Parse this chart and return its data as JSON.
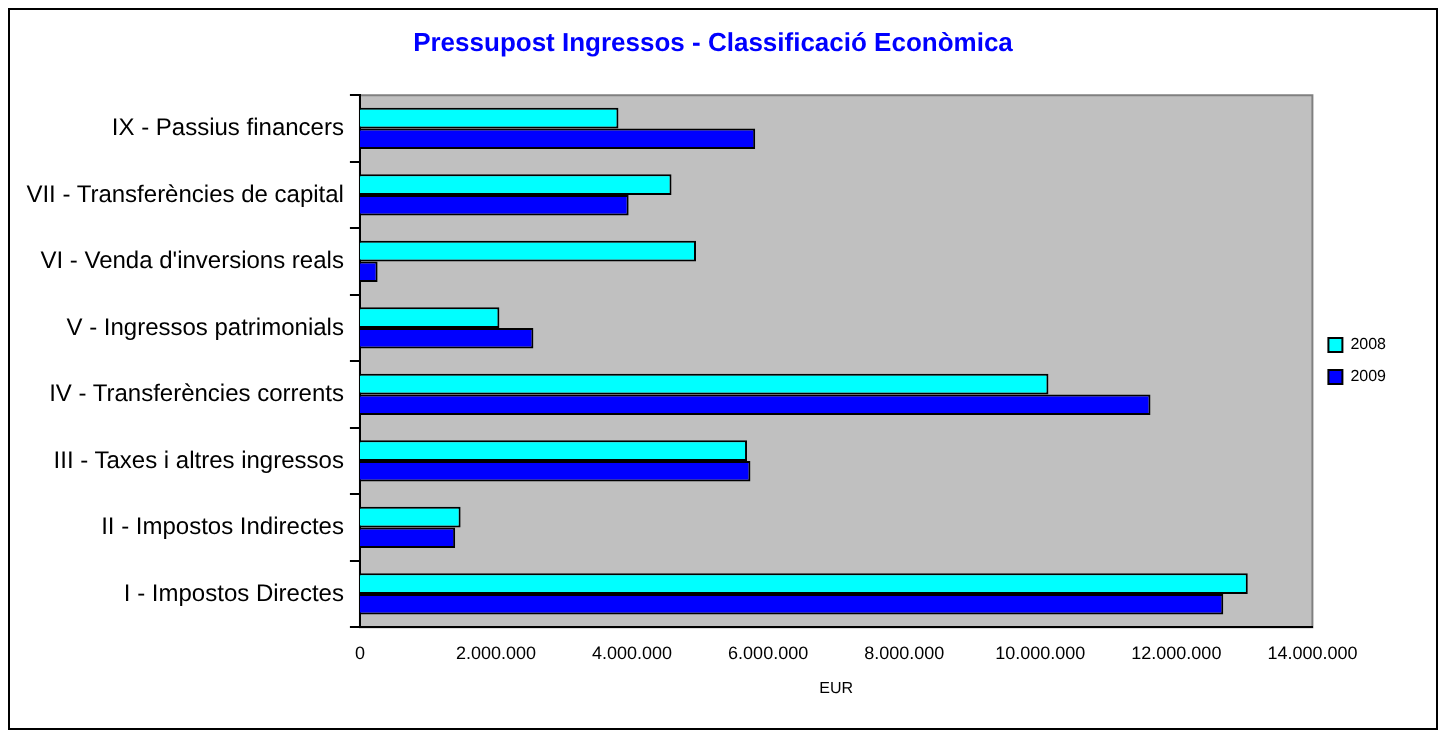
{
  "chart_data": {
    "type": "bar",
    "orientation": "horizontal",
    "title": "Pressupost Ingressos - Classificació Econòmica",
    "xlabel": "EUR",
    "categories": [
      "IX - Passius financers",
      "VII - Transferències de capital",
      "VI - Venda d'inversions reals",
      "V - Ingressos patrimonials",
      "IV - Transferències corrents",
      "III - Taxes i altres ingressos",
      "II - Impostos Indirectes",
      "I - Impostos Directes"
    ],
    "series": [
      {
        "name": "2008",
        "color": "#00ffff",
        "values": [
          3800000,
          4580000,
          4940000,
          2050000,
          10120000,
          5690000,
          1480000,
          13050000
        ]
      },
      {
        "name": "2009",
        "color": "#0000ff",
        "values": [
          5810000,
          3950000,
          260000,
          2550000,
          11620000,
          5740000,
          1400000,
          12690000
        ]
      }
    ],
    "xlim": [
      0,
      14000000
    ],
    "xticks": [
      0,
      {
        "value": 2000000,
        "label": "2.000.000"
      },
      {
        "value": 4000000,
        "label": "4.000.000"
      },
      {
        "value": 6000000,
        "label": "6.000.000"
      },
      {
        "value": 8000000,
        "label": "8.000.000"
      },
      {
        "value": 10000000,
        "label": "10.000.000"
      },
      {
        "value": 12000000,
        "label": "12.000.000"
      },
      {
        "value": 14000000,
        "label": "14.000.000"
      }
    ],
    "grid": false,
    "legend": "right"
  }
}
